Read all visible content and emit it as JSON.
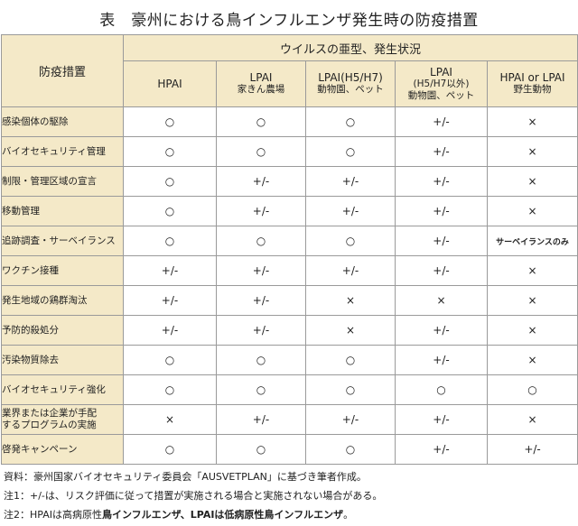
{
  "title": "表　豪州における鳥インフルエンザ発生時の防疫措置",
  "header": {
    "corner": "防疫措置",
    "group": "ウイルスの亜型、発生状況",
    "columns": [
      {
        "line1": "HPAI",
        "line2": "",
        "line3": ""
      },
      {
        "line1": "LPAI",
        "line2": "家きん農場",
        "line3": ""
      },
      {
        "line1": "LPAI(H5/H7)",
        "line2": "動物園、ペット",
        "line3": ""
      },
      {
        "line1": "LPAI",
        "line2": "(H5/H7以外)",
        "line3": "動物園、ペット"
      },
      {
        "line1": "HPAI or LPAI",
        "line2": "野生動物",
        "line3": ""
      }
    ]
  },
  "rows": [
    {
      "label": "感染個体の駆除",
      "cells": [
        "○",
        "○",
        "○",
        "+/-",
        "×"
      ]
    },
    {
      "label": "バイオセキュリティ管理",
      "cells": [
        "○",
        "○",
        "○",
        "+/-",
        "×"
      ]
    },
    {
      "label": "制限・管理区域の宣言",
      "cells": [
        "○",
        "+/-",
        "+/-",
        "+/-",
        "×"
      ]
    },
    {
      "label": "移動管理",
      "cells": [
        "○",
        "+/-",
        "+/-",
        "+/-",
        "×"
      ]
    },
    {
      "label": "追跡調査・サーベイランス",
      "cells": [
        "○",
        "○",
        "○",
        "+/-",
        "サーベイランスのみ"
      ]
    },
    {
      "label": "ワクチン接種",
      "cells": [
        "+/-",
        "+/-",
        "+/-",
        "+/-",
        "×"
      ]
    },
    {
      "label": "発生地域の鶏群淘汰",
      "cells": [
        "+/-",
        "+/-",
        "×",
        "×",
        "×"
      ]
    },
    {
      "label": "予防的殺処分",
      "cells": [
        "+/-",
        "+/-",
        "×",
        "+/-",
        "×"
      ]
    },
    {
      "label": "汚染物質除去",
      "cells": [
        "○",
        "○",
        "○",
        "+/-",
        "×"
      ]
    },
    {
      "label": "バイオセキュリティ強化",
      "cells": [
        "○",
        "○",
        "○",
        "○",
        "○"
      ]
    },
    {
      "label": "業界または企業が手配するプログラムの実施",
      "label_line1": "業界または企業が手配",
      "label_line2": "するプログラムの実施",
      "cells": [
        "×",
        "+/-",
        "+/-",
        "+/-",
        "×"
      ]
    },
    {
      "label": "啓発キャンペーン",
      "cells": [
        "○",
        "○",
        "○",
        "+/-",
        "+/-"
      ]
    }
  ],
  "notes": {
    "source": "資料：豪州国家バイオセキュリティ委員会「AUSVETPLAN」に基づき筆者作成。",
    "note1": "注1：+/-は、リスク評価に従って措置が実施される場合と実施されない場合がある。",
    "note2_prefix": "注2：HPAIは高病原性",
    "note2_bold1": "鳥インフルエンザ、LPAIは低病原性鳥インフルエンザ",
    "note2_suffix": "。"
  },
  "colors": {
    "header_bg": "#f4e9c8",
    "border": "#9a9a9a"
  }
}
